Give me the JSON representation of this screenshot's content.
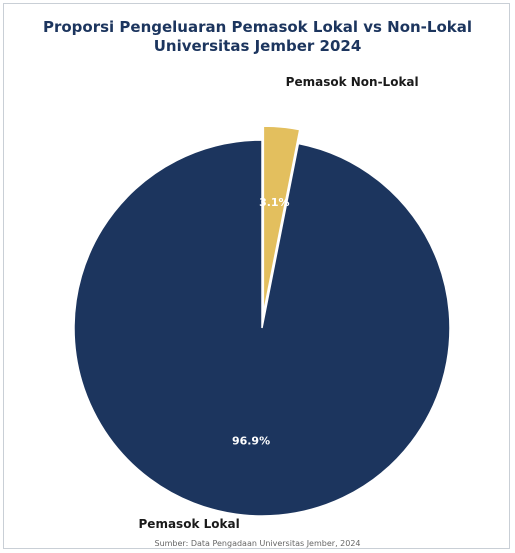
{
  "chart_data": {
    "type": "pie",
    "title_line1": "Proporsi Pengeluaran Pemasok Lokal vs Non-Lokal",
    "title_line2": "Universitas Jember 2024",
    "slices": [
      {
        "label": "Pemasok Lokal",
        "value": 96.9,
        "display": "96.9%",
        "color": "#1c355e",
        "explode": false
      },
      {
        "label": "Pemasok Non-Lokal",
        "value": 3.1,
        "display": "3.1%",
        "color": "#e3bf5e",
        "explode": true
      }
    ],
    "source": "Sumber: Data Pengadaan Universitas Jember, 2024"
  }
}
